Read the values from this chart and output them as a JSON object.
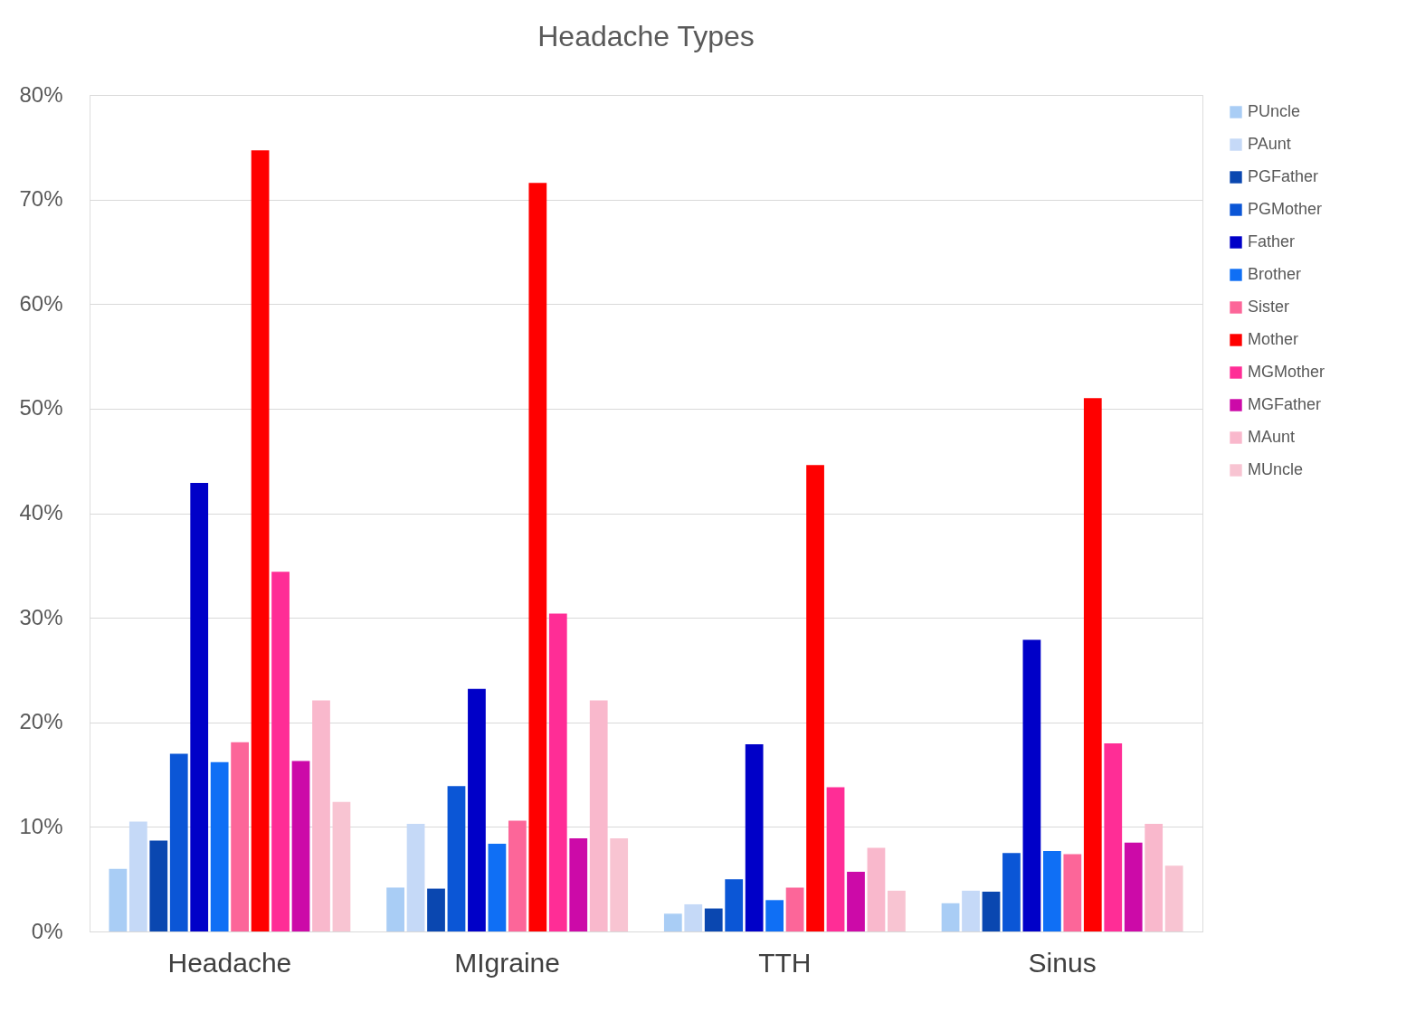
{
  "chart_data": {
    "type": "bar",
    "title": "Headache Types",
    "categories": [
      "Headache",
      "MIgraine",
      "TTH",
      "Sinus"
    ],
    "series": [
      {
        "name": "PUncle",
        "color": "#a9cdf5",
        "values": [
          6.0,
          4.2,
          1.7,
          2.7
        ]
      },
      {
        "name": "PAunt",
        "color": "#c5d9f7",
        "values": [
          10.5,
          10.3,
          2.6,
          3.9
        ]
      },
      {
        "name": "PGFather",
        "color": "#0a47b0",
        "values": [
          8.7,
          4.1,
          2.2,
          3.8
        ]
      },
      {
        "name": "PGMother",
        "color": "#0b56d6",
        "values": [
          17.0,
          13.9,
          5.0,
          7.5
        ]
      },
      {
        "name": "Father",
        "color": "#0000c8",
        "values": [
          42.9,
          23.2,
          17.9,
          27.9
        ]
      },
      {
        "name": "Brother",
        "color": "#0f6ff5",
        "values": [
          16.2,
          8.4,
          3.0,
          7.7
        ]
      },
      {
        "name": "Sister",
        "color": "#fc6699",
        "values": [
          18.1,
          10.6,
          4.2,
          7.4
        ]
      },
      {
        "name": "Mother",
        "color": "#ff0000",
        "values": [
          74.7,
          71.6,
          44.6,
          51.0
        ]
      },
      {
        "name": "MGMother",
        "color": "#ff2d96",
        "values": [
          34.4,
          30.4,
          13.8,
          18.0
        ]
      },
      {
        "name": "MGFather",
        "color": "#cc0aa8",
        "values": [
          16.3,
          8.9,
          5.7,
          8.5
        ]
      },
      {
        "name": "MAunt",
        "color": "#f9b8cc",
        "values": [
          22.1,
          22.1,
          8.0,
          10.3
        ]
      },
      {
        "name": "MUncle",
        "color": "#f8c4d2",
        "values": [
          12.4,
          8.9,
          3.9,
          6.3
        ]
      }
    ],
    "ylim": [
      0,
      80
    ],
    "yticks": [
      {
        "value": 0,
        "label": "0%"
      },
      {
        "value": 10,
        "label": "10%"
      },
      {
        "value": 20,
        "label": "20%"
      },
      {
        "value": 30,
        "label": "30%"
      },
      {
        "value": 40,
        "label": "40%"
      },
      {
        "value": 50,
        "label": "50%"
      },
      {
        "value": 60,
        "label": "60%"
      },
      {
        "value": 70,
        "label": "70%"
      },
      {
        "value": 80,
        "label": "80%"
      }
    ],
    "grid": "y",
    "legend": "right"
  }
}
